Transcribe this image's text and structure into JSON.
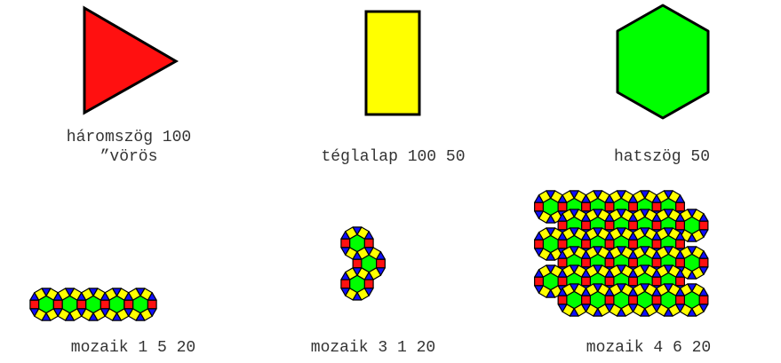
{
  "shapes": [
    {
      "name": "triangle",
      "label_line1": "háromszög 100",
      "label_line2": "”vörös",
      "fill": "#ff1010"
    },
    {
      "name": "rectangle",
      "label": "téglalap 100 50",
      "fill": "#ffff00"
    },
    {
      "name": "hexagon",
      "label": "hatszög 50",
      "fill": "#00ff00"
    }
  ],
  "mosaics": [
    {
      "label": "mozaik 1 5 20",
      "rows": 1,
      "cols": 5,
      "size": 20
    },
    {
      "label": "mozaik 3 1 20",
      "rows": 3,
      "cols": 1,
      "size": 20
    },
    {
      "label": "mozaik 4 6 20",
      "rows": 4,
      "cols": 6,
      "size": 20
    }
  ],
  "colors": {
    "red": "#ff1010",
    "yellow": "#ffff00",
    "green": "#00ff00",
    "blue": "#1010ff",
    "outline": "#000000",
    "text": "#333333"
  }
}
